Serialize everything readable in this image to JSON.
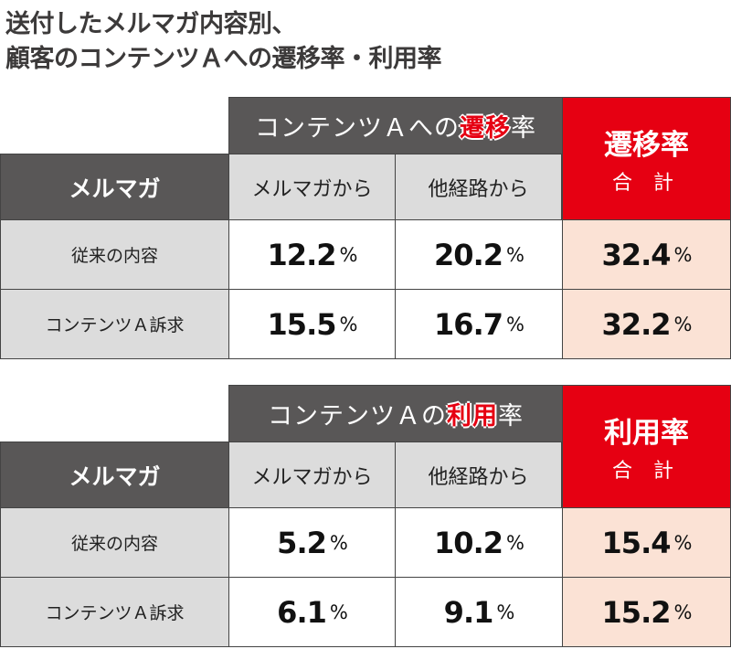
{
  "title": {
    "line1": "送付したメルマガ内容別、",
    "line2": "顧客のコンテンツＡへの遷移率・利用率"
  },
  "colors": {
    "red": "#e60012",
    "dark": "#595757",
    "light": "#dcdcdc",
    "pink": "#fbe2d5"
  },
  "chart_data": [
    {
      "type": "table",
      "header": {
        "group_prefix": "コンテンツＡへの",
        "group_highlight": "遷移",
        "group_suffix": "率",
        "row_header": "メルマガ",
        "columns": [
          "メルマガから",
          "他経路から"
        ],
        "total_title": "遷移率",
        "total_sub": "合 計"
      },
      "rows": [
        {
          "label": "従来の内容",
          "values": [
            "12.2",
            "20.2",
            "32.4"
          ]
        },
        {
          "label": "コンテンツＡ訴求",
          "values": [
            "15.5",
            "16.7",
            "32.2"
          ]
        }
      ],
      "unit": "%"
    },
    {
      "type": "table",
      "header": {
        "group_prefix": "コンテンツＡの",
        "group_highlight": "利用",
        "group_suffix": "率",
        "row_header": "メルマガ",
        "columns": [
          "メルマガから",
          "他経路から"
        ],
        "total_title": "利用率",
        "total_sub": "合 計"
      },
      "rows": [
        {
          "label": "従来の内容",
          "values": [
            "5.2",
            "10.2",
            "15.4"
          ]
        },
        {
          "label": "コンテンツＡ訴求",
          "values": [
            "6.1",
            "9.1",
            "15.2"
          ]
        }
      ],
      "unit": "%"
    }
  ]
}
